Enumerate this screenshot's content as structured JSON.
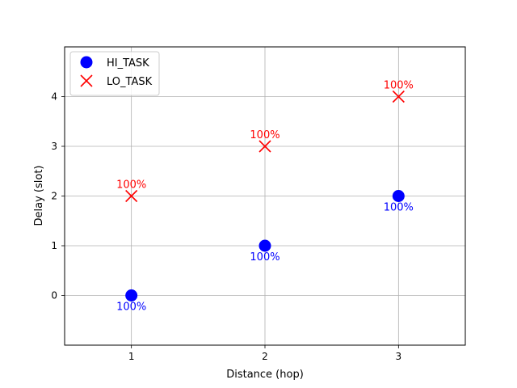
{
  "chart_data": {
    "type": "scatter",
    "xlabel": "Distance (hop)",
    "ylabel": "Delay (slot)",
    "xlim": [
      0.5,
      3.5
    ],
    "ylim": [
      -1,
      5
    ],
    "x_ticks": [
      1,
      2,
      3
    ],
    "y_ticks": [
      0,
      1,
      2,
      3,
      4
    ],
    "grid": true,
    "legend_position": "top-left",
    "series": [
      {
        "name": "HI_TASK",
        "marker": "circle",
        "color": "#0000ff",
        "label_position": "below",
        "points": [
          {
            "x": 1,
            "y": 0,
            "label": "100%"
          },
          {
            "x": 2,
            "y": 1,
            "label": "100%"
          },
          {
            "x": 3,
            "y": 2,
            "label": "100%"
          }
        ]
      },
      {
        "name": "LO_TASK",
        "marker": "x",
        "color": "#ff0000",
        "label_position": "above",
        "points": [
          {
            "x": 1,
            "y": 2,
            "label": "100%"
          },
          {
            "x": 2,
            "y": 3,
            "label": "100%"
          },
          {
            "x": 3,
            "y": 4,
            "label": "100%"
          }
        ]
      }
    ]
  }
}
